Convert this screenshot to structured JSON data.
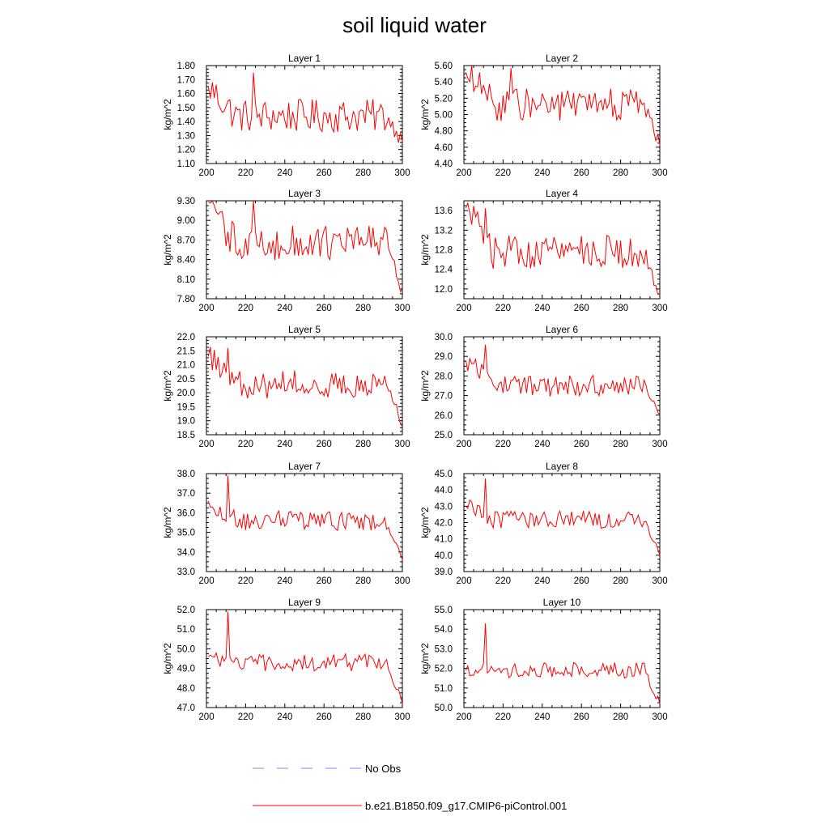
{
  "figure": {
    "title": "soil liquid water"
  },
  "legend": {
    "entries": [
      {
        "label": "No Obs",
        "color": "#8080ff",
        "dash": "dashed"
      },
      {
        "label": "b.e21.B1850.f09_g17.CMIP6-piControl.001",
        "color": "#ff0000",
        "dash": "solid"
      }
    ]
  },
  "chart_data": [
    {
      "type": "line",
      "title": "Layer 1",
      "ylabel": "kg/m^2",
      "xlim": [
        200,
        300
      ],
      "ylim": [
        1.1,
        1.8
      ],
      "xticks": [
        200,
        220,
        240,
        260,
        280,
        300
      ],
      "yticks": [
        "1.10",
        "1.20",
        "1.30",
        "1.40",
        "1.50",
        "1.60",
        "1.70",
        "1.80"
      ],
      "series": [
        {
          "color": "#ff0000",
          "mean": 1.44,
          "amp": 0.12,
          "start": 1.65,
          "end": 1.26,
          "peak_at": 224,
          "peak_val": 1.75
        }
      ]
    },
    {
      "type": "line",
      "title": "Layer 2",
      "ylabel": "kg/m^2",
      "xlim": [
        200,
        300
      ],
      "ylim": [
        4.4,
        5.6
      ],
      "xticks": [
        200,
        220,
        240,
        260,
        280,
        300
      ],
      "yticks": [
        "4.40",
        "4.60",
        "4.80",
        "5.00",
        "5.20",
        "5.40",
        "5.60"
      ],
      "series": [
        {
          "color": "#ff0000",
          "mean": 5.12,
          "amp": 0.2,
          "start": 5.52,
          "end": 4.62,
          "peak_at": 224,
          "peak_val": 5.57
        }
      ]
    },
    {
      "type": "line",
      "title": "Layer 3",
      "ylabel": "kg/m^2",
      "xlim": [
        200,
        300
      ],
      "ylim": [
        7.8,
        9.3
      ],
      "xticks": [
        200,
        220,
        240,
        260,
        280,
        300
      ],
      "yticks": [
        "7.80",
        "8.10",
        "8.40",
        "8.70",
        "9.00",
        "9.30"
      ],
      "series": [
        {
          "color": "#ff0000",
          "mean": 8.65,
          "amp": 0.28,
          "start": 9.28,
          "end": 7.95,
          "peak_at": 224,
          "peak_val": 9.3
        }
      ]
    },
    {
      "type": "line",
      "title": "Layer 4",
      "ylabel": "kg/m^2",
      "xlim": [
        200,
        300
      ],
      "ylim": [
        11.8,
        13.8
      ],
      "xticks": [
        200,
        220,
        240,
        260,
        280,
        300
      ],
      "yticks": [
        "12.0",
        "12.4",
        "12.8",
        "13.2",
        "13.6"
      ],
      "series": [
        {
          "color": "#ff0000",
          "mean": 12.75,
          "amp": 0.35,
          "start": 13.65,
          "end": 11.9,
          "peak_at": 211,
          "peak_val": 13.65
        }
      ]
    },
    {
      "type": "line",
      "title": "Layer 5",
      "ylabel": "kg/m^2",
      "xlim": [
        200,
        300
      ],
      "ylim": [
        18.5,
        22.0
      ],
      "xticks": [
        200,
        220,
        240,
        260,
        280,
        300
      ],
      "yticks": [
        "18.5",
        "19.0",
        "19.5",
        "20.0",
        "20.5",
        "21.0",
        "21.5",
        "22.0"
      ],
      "series": [
        {
          "color": "#ff0000",
          "mean": 20.3,
          "amp": 0.5,
          "start": 21.3,
          "end": 18.8,
          "peak_at": 211,
          "peak_val": 21.6
        }
      ]
    },
    {
      "type": "line",
      "title": "Layer 6",
      "ylabel": "kg/m^2",
      "xlim": [
        200,
        300
      ],
      "ylim": [
        25.0,
        30.0
      ],
      "xticks": [
        200,
        220,
        240,
        260,
        280,
        300
      ],
      "yticks": [
        "25.0",
        "26.0",
        "27.0",
        "28.0",
        "29.0",
        "30.0"
      ],
      "series": [
        {
          "color": "#ff0000",
          "mean": 27.5,
          "amp": 0.55,
          "start": 28.8,
          "end": 26.0,
          "peak_at": 211,
          "peak_val": 29.6
        }
      ]
    },
    {
      "type": "line",
      "title": "Layer 7",
      "ylabel": "kg/m^2",
      "xlim": [
        200,
        300
      ],
      "ylim": [
        33.0,
        38.0
      ],
      "xticks": [
        200,
        220,
        240,
        260,
        280,
        300
      ],
      "yticks": [
        "33.0",
        "34.0",
        "35.0",
        "36.0",
        "37.0",
        "38.0"
      ],
      "series": [
        {
          "color": "#ff0000",
          "mean": 35.6,
          "amp": 0.5,
          "start": 36.6,
          "end": 33.6,
          "peak_at": 211,
          "peak_val": 37.9
        }
      ]
    },
    {
      "type": "line",
      "title": "Layer 8",
      "ylabel": "kg/m^2",
      "xlim": [
        200,
        300
      ],
      "ylim": [
        39.0,
        45.0
      ],
      "xticks": [
        200,
        220,
        240,
        260,
        280,
        300
      ],
      "yticks": [
        "39.0",
        "40.0",
        "41.0",
        "42.0",
        "43.0",
        "44.0",
        "45.0"
      ],
      "series": [
        {
          "color": "#ff0000",
          "mean": 42.2,
          "amp": 0.55,
          "start": 43.0,
          "end": 40.0,
          "peak_at": 211,
          "peak_val": 44.7
        }
      ]
    },
    {
      "type": "line",
      "title": "Layer 9",
      "ylabel": "kg/m^2",
      "xlim": [
        200,
        300
      ],
      "ylim": [
        47.0,
        52.0
      ],
      "xticks": [
        200,
        220,
        240,
        260,
        280,
        300
      ],
      "yticks": [
        "47.0",
        "48.0",
        "49.0",
        "50.0",
        "51.0",
        "52.0"
      ],
      "series": [
        {
          "color": "#ff0000",
          "mean": 49.3,
          "amp": 0.45,
          "start": 49.6,
          "end": 47.2,
          "peak_at": 211,
          "peak_val": 51.9
        }
      ]
    },
    {
      "type": "line",
      "title": "Layer 10",
      "ylabel": "kg/m^2",
      "xlim": [
        200,
        300
      ],
      "ylim": [
        50.0,
        55.0
      ],
      "xticks": [
        200,
        220,
        240,
        260,
        280,
        300
      ],
      "yticks": [
        "50.0",
        "51.0",
        "52.0",
        "53.0",
        "54.0",
        "55.0"
      ],
      "series": [
        {
          "color": "#ff0000",
          "mean": 51.9,
          "amp": 0.4,
          "start": 51.9,
          "end": 50.2,
          "peak_at": 211,
          "peak_val": 54.3
        }
      ]
    }
  ]
}
